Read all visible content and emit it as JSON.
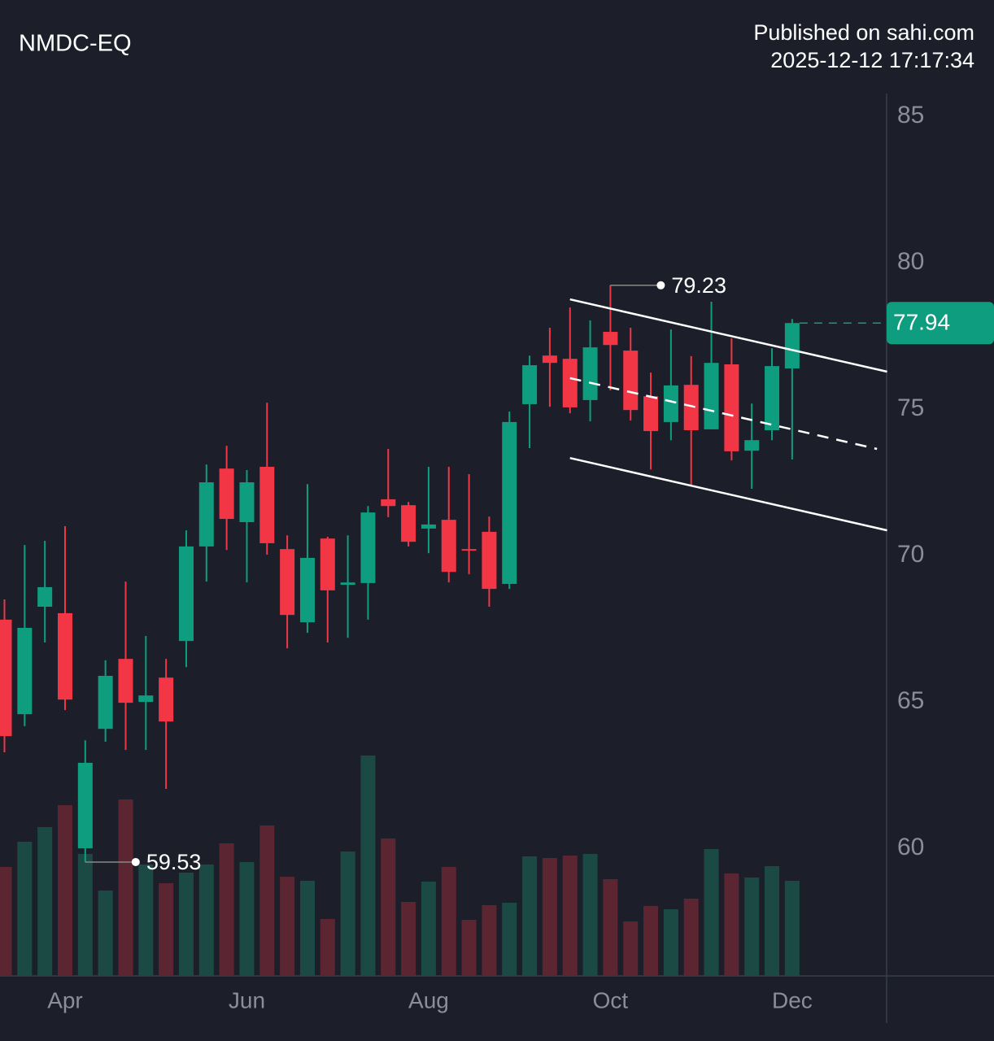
{
  "chart_data": {
    "type": "candlestick",
    "title": "NMDC-EQ",
    "publisher": "Published on sahi.com",
    "timestamp": "2025-12-12 17:17:34",
    "categories": [
      null,
      null,
      null,
      "Apr",
      null,
      null,
      null,
      null,
      null,
      null,
      null,
      null,
      "Jun",
      null,
      null,
      null,
      null,
      null,
      null,
      null,
      null,
      "Aug",
      null,
      null,
      null,
      null,
      null,
      null,
      null,
      null,
      "Oct",
      null,
      null,
      null,
      null,
      null,
      null,
      null,
      null,
      "Dec"
    ],
    "open": [
      67.81,
      64.58,
      68.25,
      68.03,
      60.0,
      64.08,
      66.47,
      65.0,
      65.83,
      67.08,
      70.31,
      72.97,
      71.14,
      73.03,
      70.22,
      67.72,
      70.58,
      69.0,
      69.06,
      71.92,
      71.72,
      70.92,
      71.22,
      70.22,
      70.81,
      69.03,
      75.17,
      76.83,
      76.72,
      75.31,
      77.64,
      77.0,
      75.44,
      74.56,
      75.83,
      74.31,
      76.53,
      73.58,
      74.28,
      76.39
    ],
    "high": [
      68.5,
      70.36,
      70.5,
      71.0,
      63.69,
      66.42,
      69.11,
      67.25,
      66.47,
      70.86,
      73.11,
      73.75,
      72.92,
      75.22,
      70.69,
      72.44,
      70.64,
      70.69,
      71.69,
      73.64,
      71.83,
      73.03,
      73.03,
      72.78,
      71.33,
      74.92,
      76.83,
      77.78,
      78.47,
      78.03,
      79.23,
      77.78,
      76.25,
      77.72,
      76.81,
      78.67,
      77.42,
      75.19,
      77.08,
      78.08
    ],
    "low": [
      63.28,
      64.17,
      67.03,
      64.72,
      59.53,
      63.64,
      63.36,
      63.36,
      62.03,
      66.19,
      69.11,
      70.19,
      69.08,
      70.03,
      66.83,
      67.36,
      67.03,
      67.19,
      67.81,
      71.31,
      70.31,
      70.08,
      69.08,
      69.36,
      68.25,
      68.86,
      73.67,
      75.08,
      74.86,
      74.58,
      75.64,
      74.61,
      72.94,
      73.94,
      72.42,
      74.31,
      73.25,
      72.28,
      73.94,
      73.28
    ],
    "close": [
      63.83,
      67.53,
      68.92,
      65.08,
      62.92,
      65.89,
      64.97,
      65.22,
      64.33,
      70.31,
      72.5,
      71.25,
      72.5,
      70.42,
      67.97,
      69.92,
      68.81,
      69.08,
      71.47,
      71.69,
      70.47,
      71.06,
      69.44,
      70.19,
      68.86,
      74.56,
      76.5,
      76.58,
      75.06,
      77.11,
      77.19,
      74.97,
      74.25,
      75.81,
      74.28,
      76.58,
      73.56,
      73.94,
      76.47,
      77.94
    ],
    "volume": [
      134,
      165,
      183,
      210,
      150,
      105,
      217,
      137,
      114,
      127,
      137,
      163,
      140,
      185,
      122,
      117,
      70,
      153,
      271,
      169,
      91,
      116,
      134,
      69,
      87,
      90,
      147,
      145,
      148,
      150,
      119,
      67,
      86,
      82,
      95,
      156,
      126,
      121,
      135,
      117
    ],
    "ylim": [
      55.64,
      85.78
    ],
    "yticks": [
      60,
      65,
      70,
      75,
      80,
      85
    ],
    "up_color": "#0f9d80",
    "down_color": "#f23645",
    "up_volume_color": "#1b4a45",
    "down_volume_color": "#5b2531",
    "lines": [
      {
        "style": "solid",
        "x": [
          28,
          43.7
        ],
        "y": [
          78.75,
          76.28
        ]
      },
      {
        "style": "dashed",
        "x": [
          28,
          43.2
        ],
        "y": [
          76.06,
          73.64
        ]
      },
      {
        "style": "solid",
        "x": [
          28,
          43.7
        ],
        "y": [
          73.33,
          70.86
        ]
      }
    ]
  }
}
